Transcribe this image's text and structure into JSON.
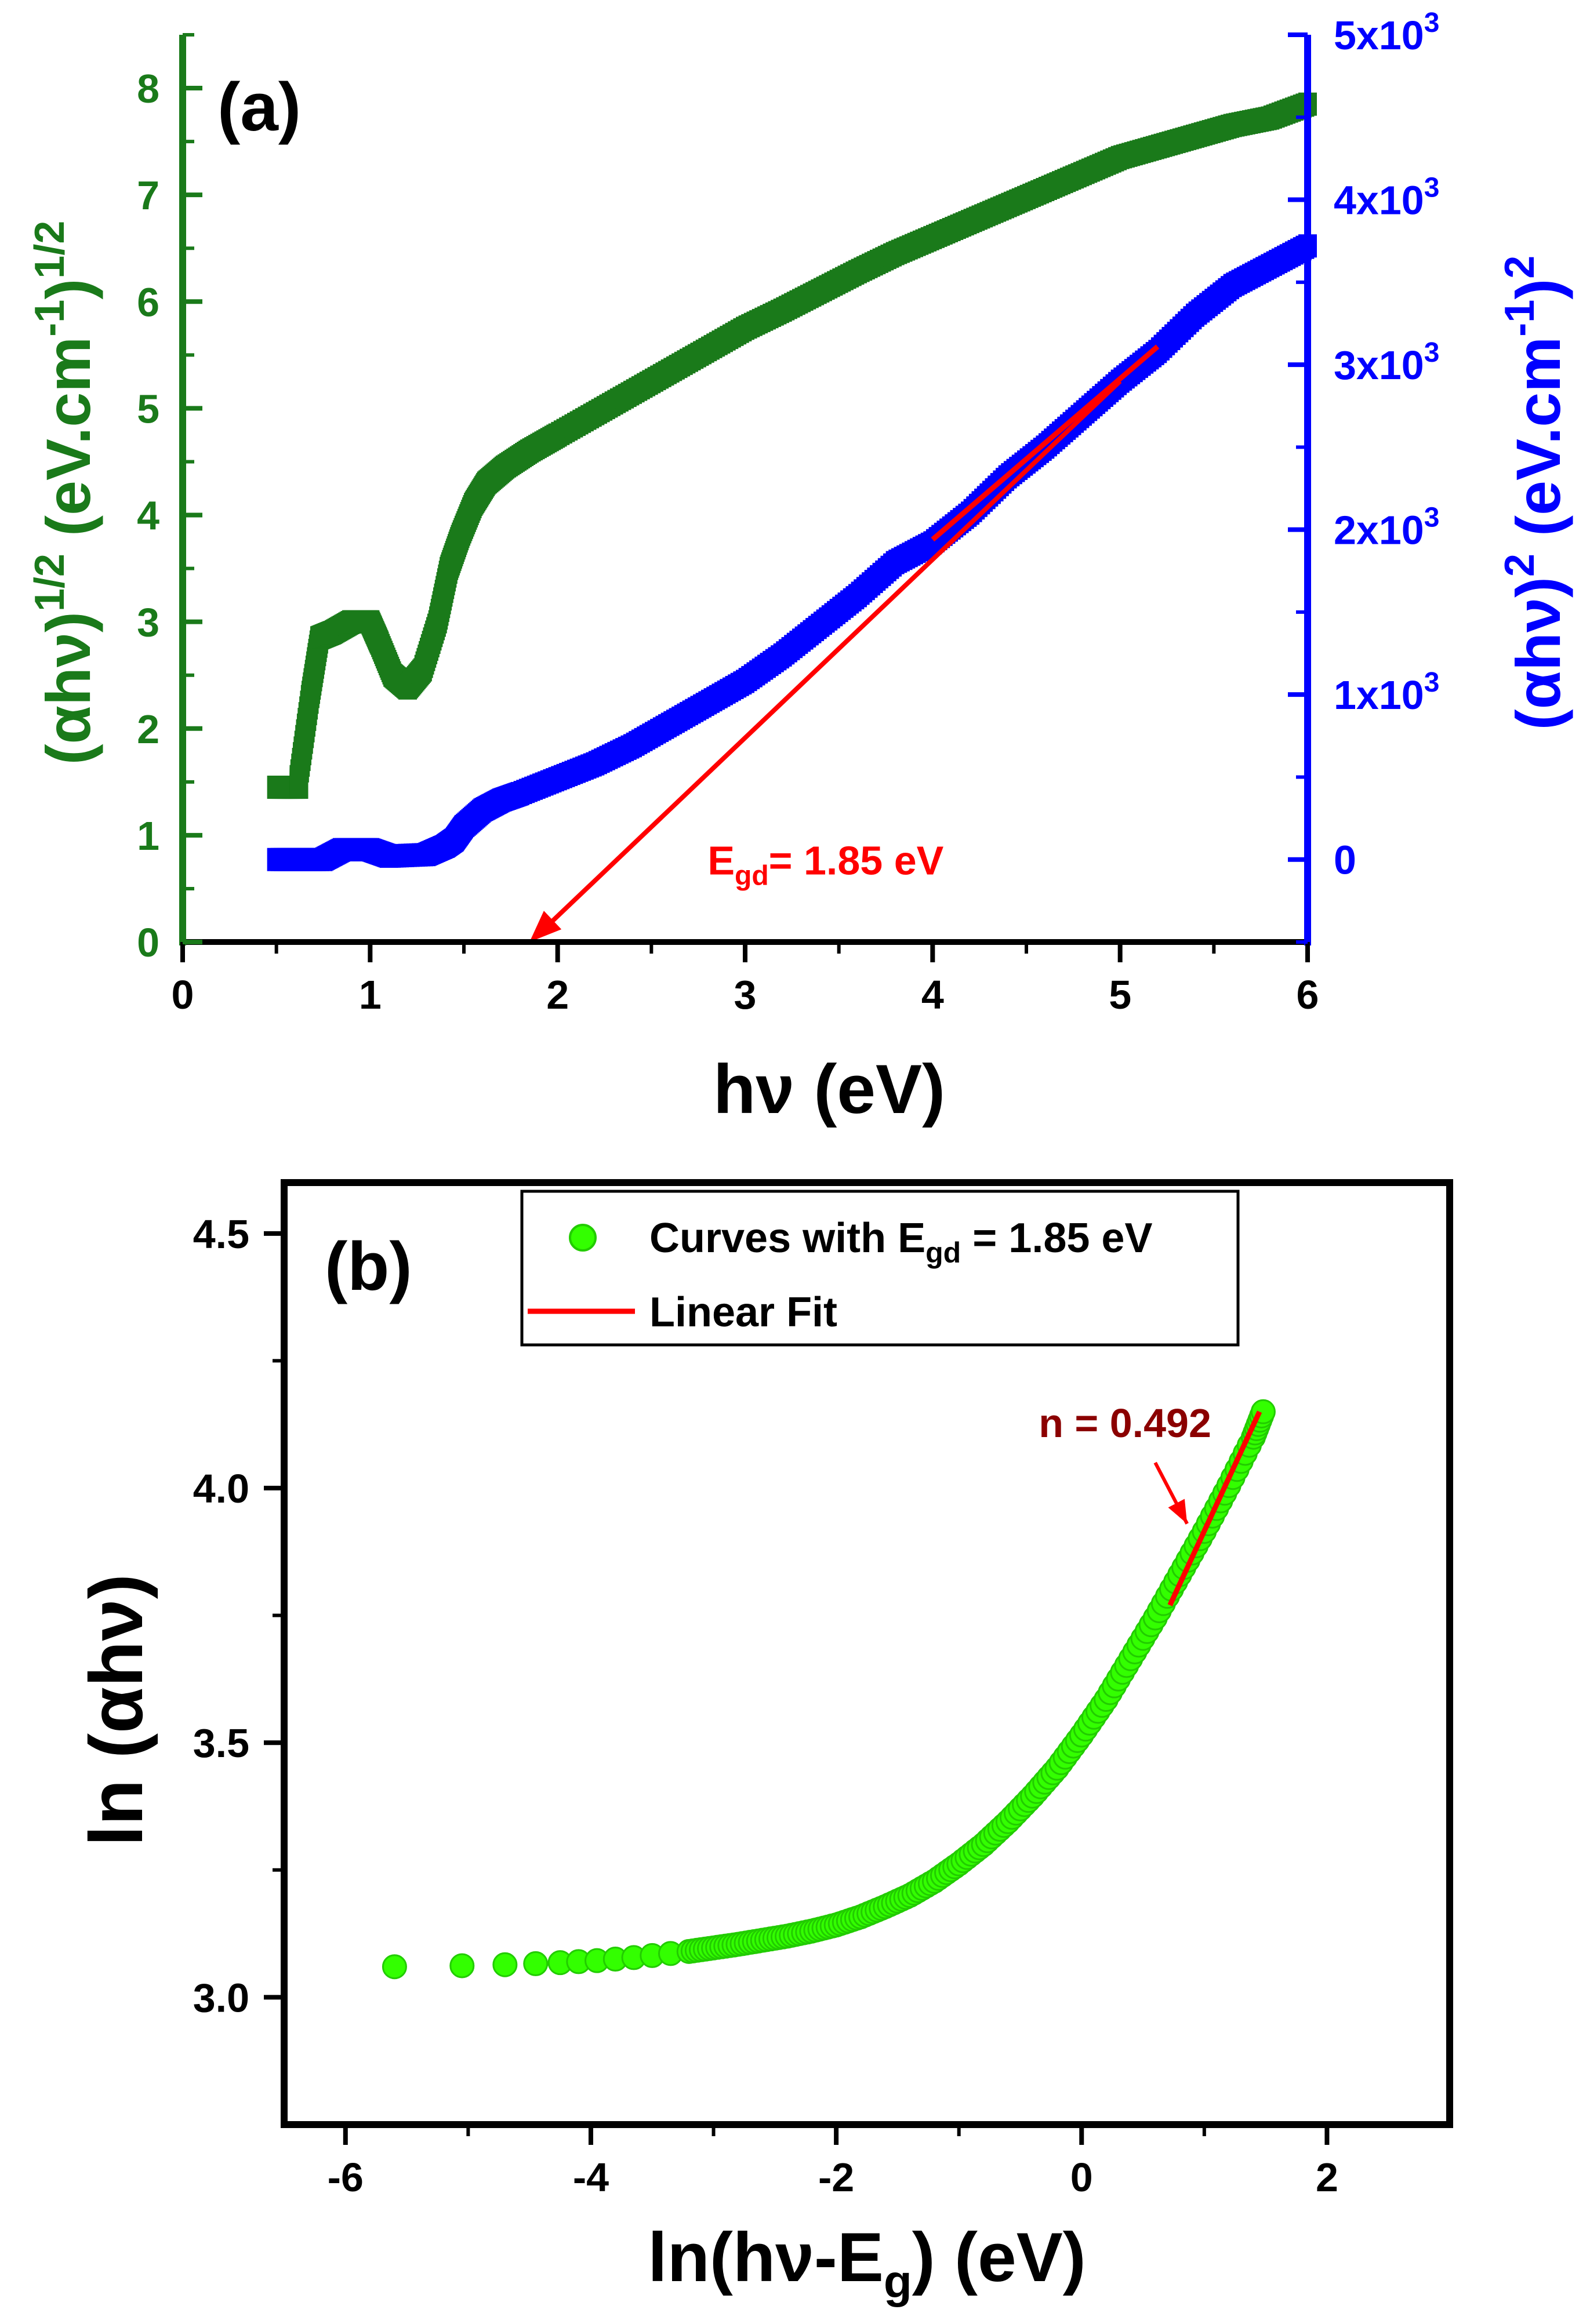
{
  "chart_data": [
    {
      "panel": "(a)",
      "type": "scatter",
      "xlabel": "hν (eV)",
      "xlim": [
        0,
        6
      ],
      "x_ticks": [
        "0",
        "1",
        "2",
        "3",
        "4",
        "5",
        "6"
      ],
      "ylabel_left": "(αhν)1/2 (eV.cm-1)1/2",
      "ylabel_left_base": "(αhν)",
      "ylabel_left_exp1": "1/2",
      "ylabel_left_mid": " (eV.cm",
      "ylabel_left_exp2": "-1",
      "ylabel_left_close": ")",
      "ylabel_left_exp3": "1/2",
      "ylim_left": [
        0,
        8.5
      ],
      "y_ticks_left": [
        "0",
        "1",
        "2",
        "3",
        "4",
        "5",
        "6",
        "7",
        "8"
      ],
      "ylabel_right": "(αhν)2 (eV.cm-1)2",
      "ylabel_right_base": "(αhν)",
      "ylabel_right_exp1": "2",
      "ylabel_right_mid": " (eV.cm",
      "ylabel_right_exp2": "-1",
      "ylabel_right_close": ")",
      "ylabel_right_exp3": "2",
      "ylim_right": [
        -500,
        5000
      ],
      "y_ticks_right": [
        {
          "value": 0,
          "base": "0",
          "exp": ""
        },
        {
          "value": 1000,
          "base": "1x10",
          "exp": "3"
        },
        {
          "value": 2000,
          "base": "2x10",
          "exp": "3"
        },
        {
          "value": 3000,
          "base": "3x10",
          "exp": "3"
        },
        {
          "value": 4000,
          "base": "4x10",
          "exp": "3"
        },
        {
          "value": 5000,
          "base": "5x10",
          "exp": "3"
        }
      ],
      "series": [
        {
          "name": "(αhν)^1/2",
          "axis": "left",
          "color": "#1a7a1a",
          "x": [
            0.5,
            0.62,
            0.62,
            0.68,
            0.73,
            0.8,
            0.9,
            1.0,
            1.05,
            1.12,
            1.2,
            1.28,
            1.36,
            1.42,
            1.48,
            1.55,
            1.62,
            1.72,
            1.85,
            2.0,
            2.2,
            2.4,
            2.6,
            2.8,
            3.0,
            3.2,
            3.4,
            3.6,
            3.8,
            4.0,
            4.2,
            4.4,
            4.6,
            4.8,
            5.0,
            5.2,
            5.4,
            5.6,
            5.8,
            6.0
          ],
          "y": [
            1.45,
            1.45,
            1.55,
            2.3,
            2.85,
            2.9,
            3.0,
            3.0,
            2.8,
            2.5,
            2.38,
            2.55,
            3.0,
            3.5,
            3.8,
            4.1,
            4.3,
            4.45,
            4.6,
            4.75,
            4.95,
            5.15,
            5.35,
            5.55,
            5.75,
            5.92,
            6.1,
            6.28,
            6.45,
            6.6,
            6.75,
            6.9,
            7.05,
            7.2,
            7.35,
            7.45,
            7.55,
            7.65,
            7.72,
            7.85
          ]
        },
        {
          "name": "(αhν)^2",
          "axis": "right",
          "color": "#0000ff",
          "x": [
            0.5,
            0.75,
            0.85,
            1.0,
            1.1,
            1.3,
            1.4,
            1.45,
            1.5,
            1.6,
            1.7,
            1.8,
            2.0,
            2.2,
            2.4,
            2.6,
            2.8,
            3.0,
            3.2,
            3.4,
            3.6,
            3.8,
            4.0,
            4.2,
            4.4,
            4.6,
            4.8,
            5.0,
            5.2,
            5.4,
            5.6,
            5.8,
            6.0
          ],
          "y": [
            0,
            0,
            60,
            60,
            20,
            30,
            80,
            120,
            200,
            300,
            360,
            400,
            490,
            580,
            690,
            820,
            950,
            1080,
            1240,
            1420,
            1600,
            1800,
            1920,
            2100,
            2320,
            2500,
            2700,
            2900,
            3080,
            3300,
            3480,
            3600,
            3720
          ]
        }
      ],
      "fit_line": {
        "color": "#ff0000",
        "x": [
          4.0,
          5.2
        ],
        "y": [
          1940,
          3110
        ],
        "axis": "right"
      },
      "arrow": {
        "color": "#ff0000",
        "from": [
          5.0,
          2900
        ],
        "to": [
          1.85,
          -500
        ],
        "axis": "right"
      },
      "panel_label": "(a)",
      "annotation_base": "E",
      "annotation_sub": "gd",
      "annotation_rest": "= 1.85 eV",
      "annotation_anchor": [
        2.8,
        -90
      ]
    },
    {
      "panel": "(b)",
      "type": "scatter",
      "xlabel_base": "ln(hν-E",
      "xlabel_sub": "g",
      "xlabel_rest": ") (eV)",
      "ylabel": "ln (αhν)",
      "xlim": [
        -6.5,
        3.0
      ],
      "ylim": [
        2.75,
        4.6
      ],
      "x_ticks": [
        "-6",
        "-4",
        "-2",
        "0",
        "2"
      ],
      "y_ticks": [
        "3.0",
        "3.5",
        "4.0",
        "4.5"
      ],
      "series": [
        {
          "name": "Curves with Egd = 1.85 eV",
          "legend_base": "Curves with E",
          "legend_sub": "gd",
          "legend_rest": " = 1.85 eV",
          "color": "#33ff00",
          "x": [
            -5.6,
            -5.05,
            -4.7,
            -4.45,
            -4.25,
            -4.1,
            -3.95,
            -3.8,
            -3.65,
            -3.5,
            -3.35,
            -3.2,
            -3.0,
            -2.8,
            -2.6,
            -2.4,
            -2.2,
            -2.0,
            -1.8,
            -1.6,
            -1.4,
            -1.2,
            -1.0,
            -0.8,
            -0.6,
            -0.4,
            -0.2,
            0.0,
            0.2,
            0.4,
            0.6,
            0.8,
            1.0,
            1.2,
            1.4,
            1.48
          ],
          "y": [
            3.06,
            3.062,
            3.064,
            3.066,
            3.068,
            3.07,
            3.072,
            3.075,
            3.078,
            3.082,
            3.086,
            3.09,
            3.097,
            3.104,
            3.112,
            3.12,
            3.13,
            3.142,
            3.158,
            3.178,
            3.2,
            3.228,
            3.262,
            3.3,
            3.345,
            3.395,
            3.45,
            3.515,
            3.585,
            3.665,
            3.745,
            3.83,
            3.915,
            4.005,
            4.1,
            4.15
          ]
        }
      ],
      "fit_line": {
        "name": "Linear Fit",
        "color": "#ff0000",
        "x": [
          0.72,
          1.45
        ],
        "y": [
          3.77,
          4.15
        ]
      },
      "annotation": "n = 0.492",
      "annotation_color": "#8b0000",
      "annotation_anchor": [
        -0.35,
        4.1
      ],
      "arrow": {
        "color": "#ff0000",
        "from": [
          0.6,
          4.05
        ],
        "to": [
          0.86,
          3.93
        ]
      },
      "panel_label": "(b)",
      "legend_position": "top-center"
    }
  ]
}
